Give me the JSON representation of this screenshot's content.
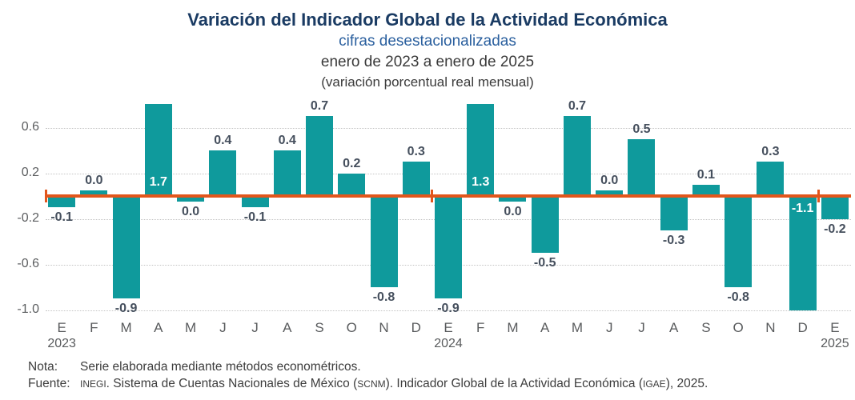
{
  "header": {
    "title": "Variación del Indicador Global de la Actividad Económica",
    "subtitle1": "cifras desestacionalizadas",
    "subtitle2": "enero de 2023 a enero de 2025",
    "subtitle3": "(variación porcentual real mensual)"
  },
  "colors": {
    "bar": "#0f9a9c",
    "zero_line": "#e2561c",
    "title": "#1a3b63",
    "subtitle_blue": "#2a5f9e",
    "value_label_dark": "#454f5d",
    "value_label_white": "#ffffff",
    "axis_text": "#5c5e60",
    "gridline": "#c4c4c4"
  },
  "chart_data": {
    "type": "bar",
    "title": "Variación del Indicador Global de la Actividad Económica",
    "subtitle": "cifras desestacionalizadas",
    "period": "enero de 2023 a enero de 2025",
    "units": "(variación porcentual real mensual)",
    "categories": [
      "E",
      "F",
      "M",
      "A",
      "M",
      "J",
      "J",
      "A",
      "S",
      "O",
      "N",
      "D",
      "E",
      "F",
      "M",
      "A",
      "M",
      "J",
      "J",
      "A",
      "S",
      "O",
      "N",
      "D",
      "E"
    ],
    "values": [
      -0.1,
      0.0,
      -0.9,
      1.7,
      0.0,
      0.4,
      -0.1,
      0.4,
      0.7,
      0.2,
      -0.8,
      0.3,
      -0.9,
      1.3,
      0.0,
      -0.5,
      0.7,
      0.0,
      0.5,
      -0.3,
      0.1,
      -0.8,
      0.3,
      -1.1,
      -0.2
    ],
    "labels": [
      "-0.1",
      "0.0",
      "-0.9",
      "1.7",
      "0.0",
      "0.4",
      "-0.1",
      "0.4",
      "0.7",
      "0.2",
      "-0.8",
      "0.3",
      "-0.9",
      "1.3",
      "0.0",
      "-0.5",
      "0.7",
      "0.0",
      "0.5",
      "-0.3",
      "0.1",
      "-0.8",
      "0.3",
      "-1.1",
      "-0.2"
    ],
    "zero_bar_signs": {
      "1": 1,
      "4": -1,
      "14": -1,
      "17": 1
    },
    "years": [
      {
        "index": 0,
        "label": "2023"
      },
      {
        "index": 12,
        "label": "2024"
      },
      {
        "index": 24,
        "label": "2025"
      }
    ],
    "year_separator_indices": [
      0,
      12,
      24
    ],
    "yticks": [
      {
        "value": 0.6,
        "label": "0.6"
      },
      {
        "value": 0.2,
        "label": "0.2"
      },
      {
        "value": -0.2,
        "label": "-0.2"
      },
      {
        "value": -0.6,
        "label": "-0.6"
      },
      {
        "value": -1.0,
        "label": "-1.0"
      }
    ],
    "ylim": [
      -1.0,
      0.81
    ],
    "grid": "horizontal-dotted",
    "legend": "none",
    "zero_line": true
  },
  "footer": {
    "nota_label": "Nota:",
    "nota_text": "Serie elaborada mediante métodos econométricos.",
    "fuente_label": "Fuente:",
    "fuente_parts": [
      {
        "t": "INEGI",
        "sc": true
      },
      {
        "t": ". Sistema de Cuentas Nacionales de México (",
        "sc": false
      },
      {
        "t": "SCNM",
        "sc": true
      },
      {
        "t": "). Indicador Global de la Actividad Económica (",
        "sc": false
      },
      {
        "t": "IGAE",
        "sc": true
      },
      {
        "t": "), 2025.",
        "sc": false
      }
    ]
  }
}
